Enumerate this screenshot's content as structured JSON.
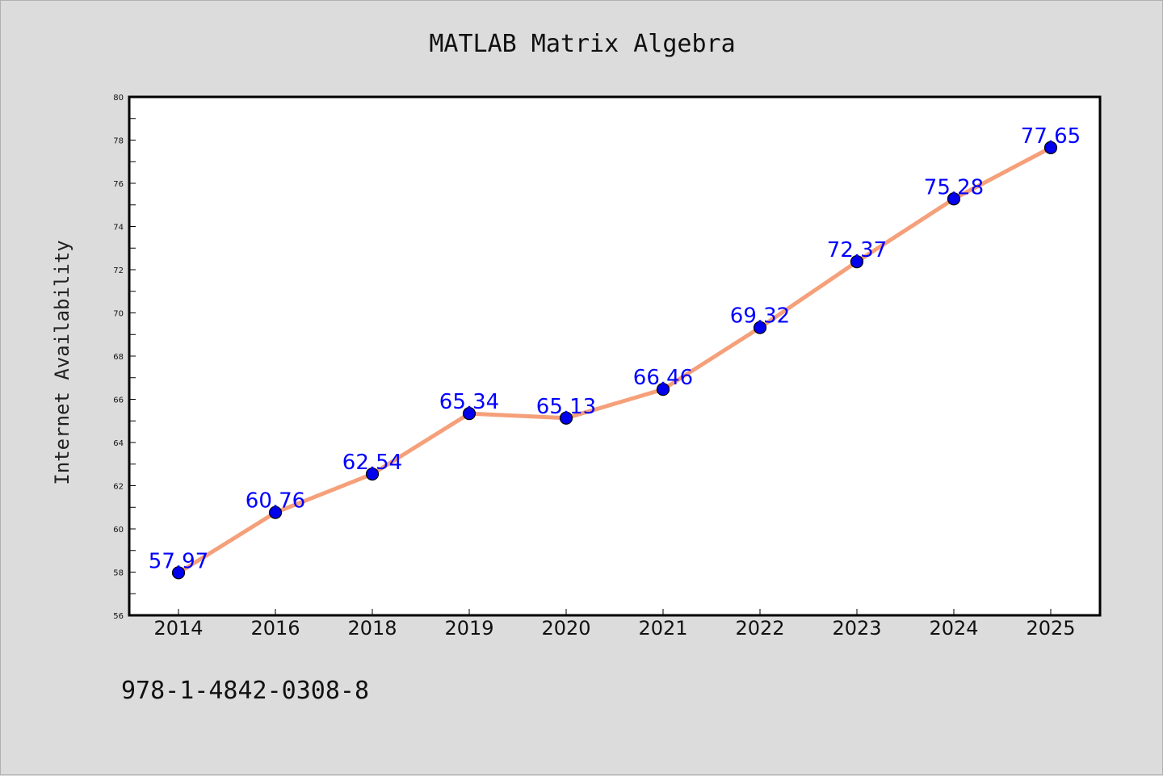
{
  "chart_data": {
    "type": "line",
    "title": "MATLAB Matrix Algebra",
    "xlabel": "",
    "ylabel": "Internet Availability",
    "categories": [
      "2014",
      "2016",
      "2018",
      "2019",
      "2020",
      "2021",
      "2022",
      "2023",
      "2024",
      "2025"
    ],
    "series": [
      {
        "values": [
          57.97,
          60.76,
          62.54,
          65.34,
          65.13,
          66.46,
          69.32,
          72.37,
          75.28,
          77.65
        ],
        "line_color": "#f5a07a",
        "marker_color": "#0000ee"
      }
    ],
    "data_labels": [
      "57.97",
      "60.76",
      "62.54",
      "65.34",
      "65.13",
      "66.46",
      "69.32",
      "72.37",
      "75.28",
      "77.65"
    ],
    "ylim": [
      56,
      80
    ],
    "yticks": [
      56,
      58,
      60,
      62,
      64,
      66,
      68,
      70,
      72,
      74,
      76,
      78,
      80
    ],
    "grid": false,
    "legend": "none"
  },
  "footnote": "978-1-4842-0308-8"
}
